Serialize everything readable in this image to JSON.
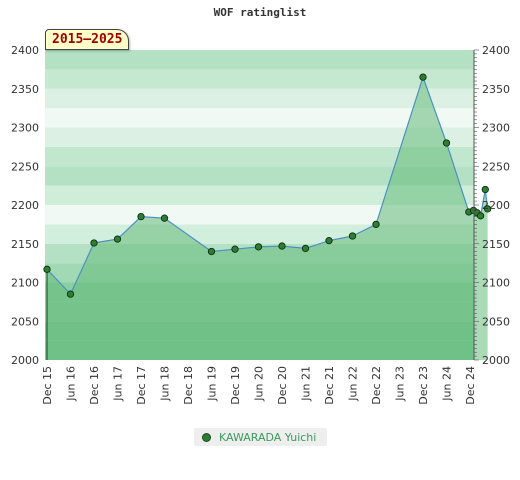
{
  "header": {
    "title": "WOF ratinglist"
  },
  "badge": {
    "period": "2015–2025"
  },
  "legend": {
    "label": "KAWARADA Yuichi"
  },
  "colors": {
    "line": "#4a90c2",
    "marker": "#2e7d32",
    "area": "#66bb7a",
    "title": "#333333",
    "badge_text": "#a00000"
  },
  "chart_data": {
    "type": "area",
    "title": "WOF ratinglist",
    "xlabel": "",
    "ylabel": "",
    "ylim": [
      2000,
      2400
    ],
    "yticks": [
      2000,
      2050,
      2100,
      2150,
      2200,
      2250,
      2300,
      2350,
      2400
    ],
    "grid": true,
    "legend_position": "bottom-center",
    "x_tick_labels": [
      "Dec 15",
      "Jun 16",
      "Dec 16",
      "Jun 17",
      "Dec 17",
      "Jun 18",
      "Dec 18",
      "Jun 19",
      "Dec 19",
      "Jun 20",
      "Dec 20",
      "Jun 21",
      "Dec 21",
      "Jun 22",
      "Dec 22",
      "Jun 23",
      "Dec 23",
      "Jun 24",
      "Dec 24"
    ],
    "series": [
      {
        "name": "KAWARADA Yuichi",
        "x": [
          0,
          1,
          2,
          3,
          4,
          5,
          7,
          8,
          9,
          10,
          11,
          12,
          13,
          14,
          16,
          17,
          17.95,
          18.15,
          18.3,
          18.45,
          18.65,
          18.75
        ],
        "values": [
          2117,
          2085,
          2151,
          2156,
          2185,
          2183,
          2140,
          2143,
          2146,
          2147,
          2144,
          2154,
          2160,
          2175,
          2365,
          2280,
          2191,
          2193,
          2190,
          2186,
          2220,
          2195
        ]
      }
    ]
  }
}
